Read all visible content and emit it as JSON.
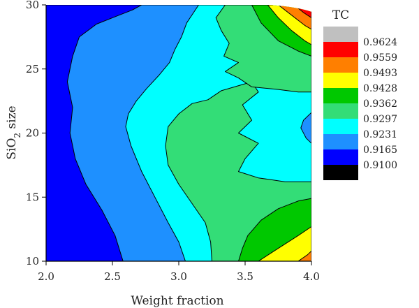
{
  "chart_data": {
    "type": "heatmap",
    "variant": "filled-contour",
    "title": "",
    "xlabel": "Weight fraction",
    "ylabel_main": "SiO",
    "ylabel_sub": "2",
    "ylabel_tail": " size",
    "xlim": [
      2.0,
      4.0
    ],
    "ylim": [
      10,
      30
    ],
    "xticks": [
      "2.0",
      "2.5",
      "3.0",
      "3.5",
      "4.0"
    ],
    "yticks": [
      "10",
      "15",
      "20",
      "25",
      "30"
    ],
    "legend": {
      "title": "TC",
      "placement": "right",
      "levels": [
        "0.9624",
        "0.9559",
        "0.9493",
        "0.9428",
        "0.9362",
        "0.9297",
        "0.9231",
        "0.9165",
        "0.9100"
      ],
      "colors": [
        "#c0c0c0",
        "#ff0000",
        "#ff7f00",
        "#ffff00",
        "#00c800",
        "#33dd77",
        "#00ffff",
        "#1e90ff",
        "#0000ff",
        "#000000"
      ]
    },
    "regions": [
      {
        "band": "0.9165-0.9231",
        "color": "#1e90ff",
        "polygon": [
          [
            2,
            10
          ],
          [
            4,
            10
          ],
          [
            4,
            30
          ],
          [
            2,
            30
          ]
        ]
      },
      {
        "band": "0.9100-0.9165",
        "color": "#0000ff",
        "polygon": [
          [
            2,
            10
          ],
          [
            2.58,
            10
          ],
          [
            2.52,
            12
          ],
          [
            2.42,
            14
          ],
          [
            2.3,
            16
          ],
          [
            2.22,
            18
          ],
          [
            2.18,
            20
          ],
          [
            2.2,
            22
          ],
          [
            2.16,
            24
          ],
          [
            2.2,
            26
          ],
          [
            2.25,
            27.5
          ],
          [
            2.38,
            28.5
          ],
          [
            2.55,
            29.2
          ],
          [
            2.65,
            29.6
          ],
          [
            2.72,
            30
          ],
          [
            2,
            30
          ]
        ]
      },
      {
        "band": "0.9231-0.9297",
        "color": "#00ffff",
        "polygon": [
          [
            3.05,
            10
          ],
          [
            4,
            10
          ],
          [
            4,
            30
          ],
          [
            3.15,
            30
          ],
          [
            3.06,
            28.6
          ],
          [
            3.02,
            27.5
          ],
          [
            2.97,
            26.5
          ],
          [
            2.93,
            25.5
          ],
          [
            2.85,
            24.5
          ],
          [
            2.76,
            23.5
          ],
          [
            2.68,
            22.5
          ],
          [
            2.62,
            21.5
          ],
          [
            2.6,
            20.5
          ],
          [
            2.64,
            19
          ],
          [
            2.72,
            17
          ],
          [
            2.82,
            15
          ],
          [
            2.92,
            13
          ],
          [
            3.0,
            11.5
          ]
        ]
      },
      {
        "band": "0.9297-0.9362",
        "color": "#33dd77",
        "polygon": [
          [
            3.25,
            10
          ],
          [
            3.24,
            11.5
          ],
          [
            3.2,
            13
          ],
          [
            3.1,
            14.5
          ],
          [
            3.0,
            16
          ],
          [
            2.92,
            17.5
          ],
          [
            2.9,
            19
          ],
          [
            2.92,
            20.5
          ],
          [
            3.0,
            21.5
          ],
          [
            3.1,
            22.3
          ],
          [
            3.22,
            22.6
          ],
          [
            3.32,
            23.3
          ],
          [
            3.42,
            23.6
          ],
          [
            3.55,
            24
          ],
          [
            3.6,
            23.2
          ],
          [
            3.48,
            22.2
          ],
          [
            3.55,
            21
          ],
          [
            3.45,
            20
          ],
          [
            3.6,
            19.2
          ],
          [
            3.5,
            18
          ],
          [
            3.45,
            17
          ],
          [
            3.6,
            16.5
          ],
          [
            3.8,
            16.2
          ],
          [
            3.95,
            16.2
          ],
          [
            4,
            16.2
          ],
          [
            4,
            10
          ]
        ]
      },
      {
        "band": "0.9297-0.9362",
        "color": "#33dd77",
        "polygon": [
          [
            3.35,
            30
          ],
          [
            3.28,
            29
          ],
          [
            3.32,
            28
          ],
          [
            3.38,
            27
          ],
          [
            3.34,
            26
          ],
          [
            3.45,
            25.5
          ],
          [
            3.35,
            24.8
          ],
          [
            3.45,
            24.3
          ],
          [
            3.55,
            23.6
          ],
          [
            3.75,
            23.4
          ],
          [
            3.9,
            23.2
          ],
          [
            4,
            23.2
          ],
          [
            4,
            30
          ]
        ]
      },
      {
        "band": "0.9165-0.9231",
        "color": "#1e90ff",
        "polygon": [
          [
            4,
            21.6
          ],
          [
            3.94,
            21.0
          ],
          [
            3.92,
            20.4
          ],
          [
            3.96,
            19.6
          ],
          [
            4,
            19.2
          ]
        ]
      },
      {
        "band": "0.9362-0.9428",
        "color": "#00c800",
        "polygon": [
          [
            3.45,
            10
          ],
          [
            3.48,
            11
          ],
          [
            3.52,
            12
          ],
          [
            3.62,
            13.2
          ],
          [
            3.75,
            14.1
          ],
          [
            3.9,
            14.7
          ],
          [
            4,
            14.9
          ],
          [
            4,
            10
          ]
        ]
      },
      {
        "band": "0.9362-0.9428",
        "color": "#00c800",
        "polygon": [
          [
            3.55,
            30
          ],
          [
            3.62,
            28.6
          ],
          [
            3.75,
            27.2
          ],
          [
            3.9,
            26.4
          ],
          [
            4,
            26
          ],
          [
            4,
            30
          ]
        ]
      },
      {
        "band": "0.9428-0.9493",
        "color": "#ffff00",
        "polygon": [
          [
            3.6,
            10
          ],
          [
            3.75,
            11.0
          ],
          [
            3.9,
            12.0
          ],
          [
            4,
            12.7
          ],
          [
            4,
            10
          ]
        ]
      },
      {
        "band": "0.9428-0.9493",
        "color": "#ffff00",
        "polygon": [
          [
            3.67,
            30
          ],
          [
            3.75,
            29
          ],
          [
            3.85,
            28
          ],
          [
            3.95,
            27.2
          ],
          [
            4,
            26.9
          ],
          [
            4,
            30
          ]
        ]
      },
      {
        "band": "0.9493-0.9559",
        "color": "#ff7f00",
        "polygon": [
          [
            3.75,
            30
          ],
          [
            3.85,
            29.2
          ],
          [
            3.95,
            28.4
          ],
          [
            4,
            28.1
          ],
          [
            4,
            30
          ]
        ]
      },
      {
        "band": "0.9493-0.9559",
        "color": "#ff7f00",
        "polygon": [
          [
            3.9,
            10
          ],
          [
            3.97,
            10.5
          ],
          [
            4,
            10.8
          ],
          [
            4,
            10
          ]
        ]
      },
      {
        "band": "0.9559-0.9624",
        "color": "#ff0000",
        "polygon": [
          [
            3.87,
            30
          ],
          [
            3.94,
            29.4
          ],
          [
            4,
            29
          ],
          [
            4,
            30
          ]
        ]
      }
    ]
  }
}
